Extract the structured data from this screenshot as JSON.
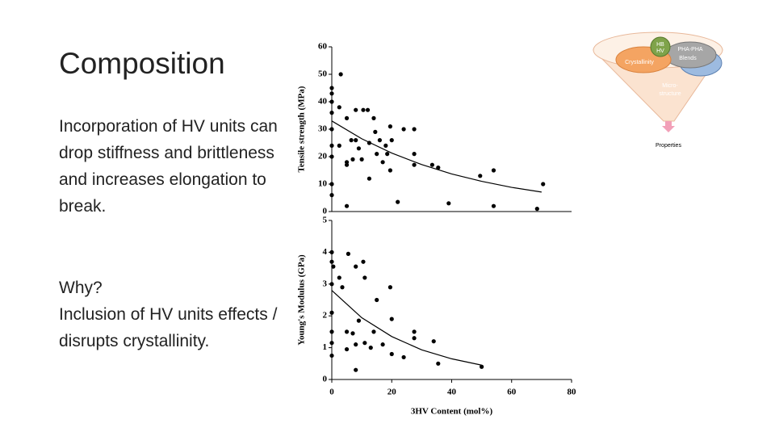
{
  "slide": {
    "title": "Composition",
    "body": [
      "Incorporation of HV units can drop stiffness and brittleness and increases elongation to break.",
      "Why?",
      "Inclusion of HV units effects / disrupts crystallinity."
    ]
  },
  "diagram": {
    "hb": "HB",
    "hv": "HV",
    "blend1": "PHA-PHA",
    "blend2": "Blends",
    "crystallinity": "Crystallinity",
    "micro1": "Micro-",
    "micro2": "structure",
    "properties": "Properties"
  },
  "chart_data": [
    {
      "type": "scatter",
      "ylabel": "Tensile strength (MPa)",
      "color": "#000000",
      "xlim": [
        0,
        80
      ],
      "ylim": [
        0,
        60
      ],
      "yticks": [
        0,
        10,
        20,
        30,
        40,
        50,
        60
      ],
      "x": [
        0,
        0,
        0,
        3,
        0,
        0,
        2.5,
        5,
        0,
        0,
        2.5,
        5,
        5,
        0,
        0,
        5,
        8,
        6.5,
        8,
        7,
        9,
        10,
        10.5,
        12,
        12.5,
        14,
        12.5,
        14.5,
        15,
        16,
        17,
        18,
        18.5,
        19.5,
        20,
        19.5,
        22,
        24,
        27.5,
        27.5,
        27.5,
        33.5,
        35.5,
        39,
        49.5,
        54,
        54,
        68.5,
        70.5
      ],
      "values": [
        43,
        45,
        40,
        50,
        36,
        30,
        38,
        34,
        24,
        20,
        24,
        18,
        17,
        6,
        10,
        2,
        37,
        26,
        26,
        19,
        23,
        19,
        37,
        37,
        25,
        34,
        12,
        29,
        21,
        26,
        18,
        24,
        21,
        31,
        26,
        15,
        3.5,
        30,
        30,
        21,
        17,
        17,
        16,
        3,
        13,
        15,
        2,
        1,
        10
      ],
      "fit": {
        "x": [
          0,
          10,
          20,
          30,
          40,
          50,
          60,
          70
        ],
        "values": [
          33,
          26.5,
          21.3,
          17.1,
          13.7,
          11,
          8.8,
          7.1
        ]
      }
    },
    {
      "type": "scatter",
      "ylabel": "Young's Modulus (GPa)",
      "xlabel": "3HV Content (mol%)",
      "color": "#000000",
      "xlim": [
        0,
        80
      ],
      "ylim": [
        0,
        5
      ],
      "xticks": [
        0,
        20,
        40,
        60,
        80
      ],
      "yticks": [
        0,
        1,
        2,
        3,
        4,
        5
      ],
      "x": [
        0,
        0,
        0.5,
        0,
        0,
        0,
        0,
        0,
        2.5,
        3.5,
        5,
        5,
        5.5,
        8,
        7,
        8,
        8,
        9,
        10.5,
        11,
        11,
        13,
        14,
        15,
        17,
        19.5,
        20,
        20,
        24,
        27.5,
        27.5,
        34,
        35.5,
        50
      ],
      "values": [
        4,
        3.7,
        3.55,
        3,
        2.1,
        1.5,
        1.15,
        0.75,
        3.2,
        2.9,
        1.5,
        0.95,
        3.95,
        3.55,
        1.45,
        0.3,
        1.1,
        1.85,
        3.7,
        3.2,
        1.15,
        1,
        1.5,
        2.5,
        1.1,
        2.9,
        1.9,
        0.8,
        0.7,
        1.5,
        1.3,
        1.2,
        0.5,
        0.4
      ],
      "fit": {
        "x": [
          0,
          10,
          20,
          30,
          40,
          50
        ],
        "values": [
          2.8,
          1.94,
          1.35,
          0.93,
          0.65,
          0.45
        ]
      }
    }
  ]
}
